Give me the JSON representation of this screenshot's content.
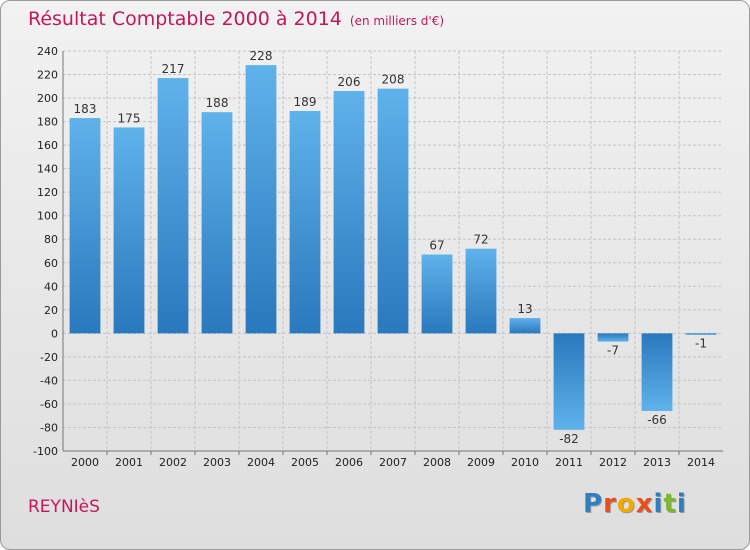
{
  "chart_data": {
    "type": "bar",
    "title": "Résultat Comptable 2000 à 2014",
    "subtitle": "(en milliers d'€)",
    "categories": [
      "2000",
      "2001",
      "2002",
      "2003",
      "2004",
      "2005",
      "2006",
      "2007",
      "2008",
      "2009",
      "2010",
      "2011",
      "2012",
      "2013",
      "2014"
    ],
    "values": [
      183,
      175,
      217,
      188,
      228,
      189,
      206,
      208,
      67,
      72,
      13,
      -82,
      -7,
      -66,
      -1
    ],
    "ylim": [
      -100,
      240
    ],
    "yticks": [
      240,
      220,
      200,
      180,
      160,
      140,
      120,
      100,
      80,
      60,
      40,
      20,
      0,
      -20,
      -40,
      -60,
      -80,
      -100
    ],
    "grid": true
  },
  "footer": {
    "town": "REYNIèS",
    "logo": [
      "P",
      "r",
      "o",
      "x",
      "i",
      "t",
      "i"
    ]
  },
  "colors": {
    "title": "#c2185b",
    "bar_top": "#5fb2ea",
    "bar_bottom": "#2a78bd",
    "logo": [
      "#2e7fc0",
      "#e94e1b",
      "#f2a900",
      "#e94e1b",
      "#2e7fc0",
      "#7cb82f",
      "#2e7fc0"
    ]
  }
}
